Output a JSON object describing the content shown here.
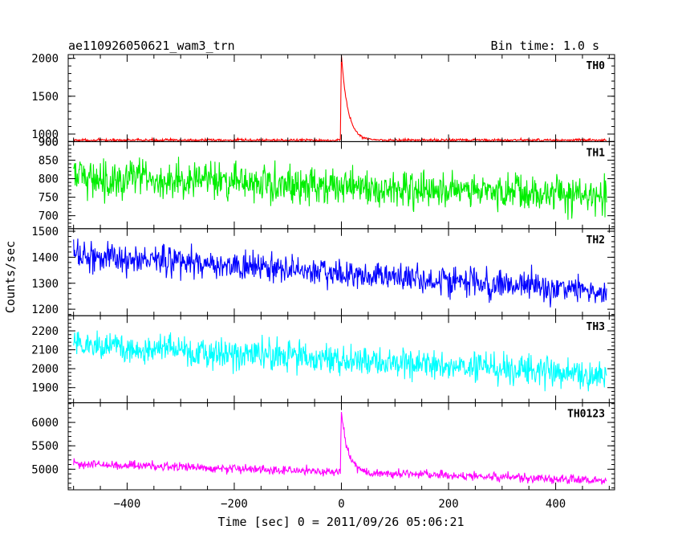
{
  "header": {
    "left_title": "ae110926050621_wam3_trn",
    "right_title": "Bin time: 1.0 s"
  },
  "axes": {
    "xlabel": "Time [sec] 0 = 2011/09/26 05:06:21",
    "ylabel": "Counts/sec"
  },
  "chart_data": {
    "type": "line",
    "title": "ae110926050621_wam3_trn",
    "subtitle": "Bin time: 1.0 s",
    "xlabel": "Time [sec] 0 = 2011/09/26 05:06:21",
    "ylabel": "Counts/sec",
    "xlim": [
      -510,
      510
    ],
    "x_ticks": [
      -400,
      -200,
      0,
      200,
      400
    ],
    "x_range_data": [
      -500,
      495
    ],
    "grid": false,
    "legend": "none",
    "panels": [
      {
        "label": "TH0",
        "color": "#ff0000",
        "ylim": [
          900,
          2050
        ],
        "y_ticks": [
          900,
          1000,
          1500,
          2000
        ],
        "baseline_start": 920,
        "baseline_end": 920,
        "noise": 12,
        "peak": {
          "x": 0,
          "value": 2050,
          "rise_start": -2,
          "decay_tau": 12
        },
        "summary": {
          "pre_burst_level": 920,
          "peak_value": 2050,
          "post_burst_level": 920
        }
      },
      {
        "label": "TH1",
        "color": "#00ee00",
        "ylim": [
          665,
          900
        ],
        "y_ticks": [
          700,
          750,
          800,
          850,
          900
        ],
        "baseline_start": 805,
        "baseline_end": 755,
        "noise": 35,
        "peak": null,
        "summary": {
          "start_level": 805,
          "end_level": 755
        }
      },
      {
        "label": "TH2",
        "color": "#0000ff",
        "ylim": [
          1175,
          1510
        ],
        "y_ticks": [
          1200,
          1300,
          1400,
          1500
        ],
        "baseline_start": 1410,
        "baseline_end": 1265,
        "noise": 40,
        "peak": null,
        "summary": {
          "start_level": 1410,
          "end_level": 1265
        }
      },
      {
        "label": "TH3",
        "color": "#00ffff",
        "ylim": [
          1820,
          2280
        ],
        "y_ticks": [
          1900,
          2000,
          2100,
          2200
        ],
        "baseline_start": 2130,
        "baseline_end": 1960,
        "noise": 55,
        "peak": null,
        "summary": {
          "start_level": 2130,
          "end_level": 1960
        }
      },
      {
        "label": "TH0123",
        "color": "#ff00ff",
        "ylim": [
          4560,
          6420
        ],
        "y_ticks": [
          5000,
          5500,
          6000
        ],
        "baseline_start": 5120,
        "baseline_end": 4760,
        "noise": 65,
        "peak": {
          "x": 0,
          "value": 6420,
          "rise_start": -2,
          "decay_tau": 12
        },
        "summary": {
          "start_level": 5120,
          "peak_value": 6420,
          "end_level": 4760
        }
      }
    ]
  }
}
